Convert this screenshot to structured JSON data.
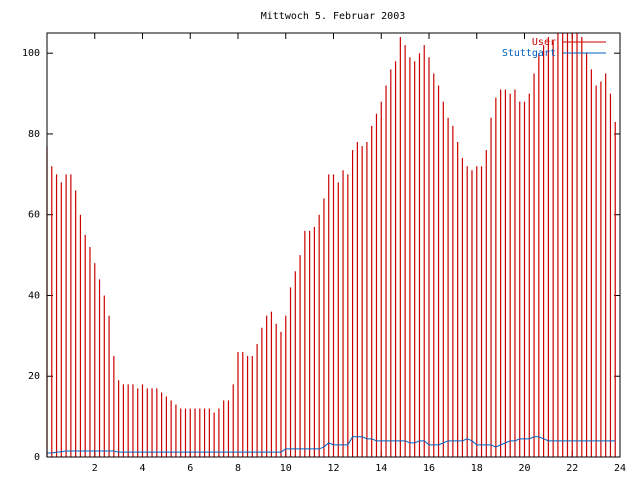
{
  "chart_data": {
    "type": "impulses",
    "title": "Mittwoch 5. Februar 2003",
    "x": [
      0,
      0.2,
      0.4,
      0.6,
      0.8,
      1,
      1.2,
      1.4,
      1.6,
      1.8,
      2,
      2.2,
      2.4,
      2.6,
      2.8,
      3,
      3.2,
      3.4,
      3.6,
      3.8,
      4,
      4.2,
      4.4,
      4.6,
      4.8,
      5,
      5.2,
      5.4,
      5.6,
      5.8,
      6,
      6.2,
      6.4,
      6.6,
      6.8,
      7,
      7.2,
      7.4,
      7.6,
      7.8,
      8,
      8.2,
      8.4,
      8.6,
      8.8,
      9,
      9.2,
      9.4,
      9.6,
      9.8,
      10,
      10.2,
      10.4,
      10.6,
      10.8,
      11,
      11.2,
      11.4,
      11.6,
      11.8,
      12,
      12.2,
      12.4,
      12.6,
      12.8,
      13,
      13.2,
      13.4,
      13.6,
      13.8,
      14,
      14.2,
      14.4,
      14.6,
      14.8,
      15,
      15.2,
      15.4,
      15.6,
      15.8,
      16,
      16.2,
      16.4,
      16.6,
      16.8,
      17,
      17.2,
      17.4,
      17.6,
      17.8,
      18,
      18.2,
      18.4,
      18.6,
      18.8,
      19,
      19.2,
      19.4,
      19.6,
      19.8,
      20,
      20.2,
      20.4,
      20.6,
      20.8,
      21,
      21.2,
      21.4,
      21.6,
      21.8,
      22,
      22.2,
      22.4,
      22.6,
      22.8,
      23,
      23.2,
      23.4,
      23.6,
      23.8
    ],
    "series": [
      {
        "name": "User",
        "color": "#cc0000",
        "style": "impulses",
        "values": [
          77,
          72,
          70,
          68,
          70,
          70,
          66,
          60,
          55,
          52,
          48,
          44,
          40,
          35,
          25,
          19,
          18,
          18,
          18,
          17,
          18,
          17,
          17,
          17,
          16,
          15,
          14,
          13,
          12,
          12,
          12,
          12,
          12,
          12,
          12,
          11,
          12,
          14,
          14,
          18,
          26,
          26,
          25,
          25,
          28,
          32,
          35,
          36,
          33,
          31,
          35,
          42,
          46,
          50,
          56,
          56,
          57,
          60,
          64,
          70,
          70,
          68,
          71,
          70,
          76,
          78,
          77,
          78,
          82,
          85,
          88,
          92,
          96,
          98,
          104,
          102,
          99,
          98,
          100,
          102,
          99,
          95,
          92,
          88,
          84,
          82,
          78,
          74,
          72,
          71,
          72,
          72,
          76,
          84,
          89,
          91,
          91,
          90,
          91,
          88,
          88,
          90,
          95,
          100,
          102,
          104,
          103,
          105,
          105,
          105,
          105,
          105,
          104,
          100,
          96,
          92,
          93,
          95,
          90,
          83
        ]
      },
      {
        "name": "Stuttgart",
        "color": "#0060c0",
        "style": "line",
        "values": [
          1,
          1,
          1.2,
          1.3,
          1.5,
          1.5,
          1.5,
          1.5,
          1.5,
          1.5,
          1.5,
          1.5,
          1.5,
          1.5,
          1.5,
          1.2,
          1.2,
          1.2,
          1.2,
          1.2,
          1.2,
          1.2,
          1.2,
          1.2,
          1.2,
          1.2,
          1.2,
          1.2,
          1.2,
          1.2,
          1.2,
          1.2,
          1.2,
          1.2,
          1.2,
          1.2,
          1.2,
          1.2,
          1.2,
          1.2,
          1.2,
          1.2,
          1.2,
          1.2,
          1.2,
          1.2,
          1.2,
          1.2,
          1.2,
          1.2,
          2,
          2,
          2,
          2,
          2,
          2,
          2,
          2,
          2.5,
          3.5,
          3,
          3,
          3,
          3,
          5,
          5,
          5,
          4.5,
          4.5,
          4,
          4,
          4,
          4,
          4,
          4,
          4,
          3.5,
          3.5,
          4,
          4,
          3,
          3,
          3,
          3.5,
          4,
          4,
          4,
          4,
          4.5,
          4,
          3,
          3,
          3,
          3,
          2.5,
          3,
          3.5,
          4,
          4,
          4.5,
          4.5,
          4.5,
          5,
          5,
          4.5,
          4,
          4,
          4,
          4,
          4,
          4,
          4,
          4,
          4,
          4,
          4,
          4,
          4,
          4,
          4
        ]
      }
    ],
    "xlim": [
      0,
      24
    ],
    "xticks": [
      2,
      4,
      6,
      8,
      10,
      12,
      14,
      16,
      18,
      20,
      22,
      24
    ],
    "ylim": [
      0,
      105
    ],
    "yticks": [
      0,
      20,
      40,
      60,
      80,
      100
    ],
    "legend": "upper right"
  }
}
